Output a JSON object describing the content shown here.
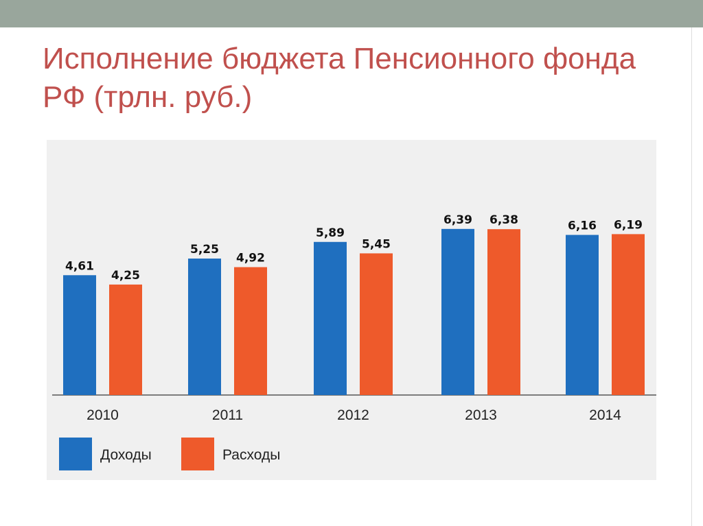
{
  "slide": {
    "title": "Исполнение бюджета Пенсионного фонда РФ (трлн. руб.)"
  },
  "colors": {
    "top_band": "#99a69c",
    "title": "#c0504d",
    "income": "#1f6fbf",
    "expense": "#ee5a2b"
  },
  "chart_data": {
    "type": "bar",
    "categories": [
      "2010",
      "2011",
      "2012",
      "2013",
      "2014"
    ],
    "series": [
      {
        "name": "Доходы",
        "values": [
          4.61,
          5.25,
          5.89,
          6.39,
          6.16
        ],
        "labels": [
          "4,61",
          "5,25",
          "5,89",
          "6,39",
          "6,16"
        ],
        "color": "#1f6fbf"
      },
      {
        "name": "Расходы",
        "values": [
          4.25,
          4.92,
          5.45,
          6.38,
          6.19
        ],
        "labels": [
          "4,25",
          "4,92",
          "5,45",
          "6,38",
          "6,19"
        ],
        "color": "#ee5a2b"
      }
    ],
    "title": "Исполнение бюджета Пенсионного фонда РФ (трлн. руб.)",
    "xlabel": "",
    "ylabel": "",
    "ylim": [
      0,
      6.5
    ],
    "grid": false,
    "legend": "bottom-left"
  }
}
